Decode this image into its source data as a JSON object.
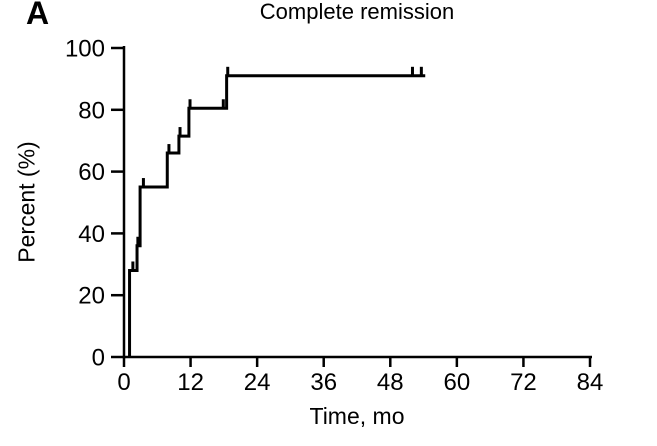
{
  "panel_label": "A",
  "chart_data": {
    "type": "line",
    "subtype": "kaplan-meier-step-curve",
    "title": "Complete remission",
    "xlabel": "Time, mo",
    "ylabel": "Percent (%)",
    "xlim": [
      0,
      84
    ],
    "ylim": [
      0,
      100
    ],
    "xticks": [
      0,
      12,
      24,
      36,
      48,
      60,
      72,
      84
    ],
    "yticks": [
      0,
      20,
      40,
      60,
      80,
      100
    ],
    "grid": false,
    "legend": false,
    "line_color": "#000000",
    "axis_color": "#000000",
    "background_color": "#ffffff",
    "steps": [
      {
        "t": 1.0,
        "pct": 0
      },
      {
        "t": 1.0,
        "pct": 28
      },
      {
        "t": 2.35,
        "pct": 28
      },
      {
        "t": 2.35,
        "pct": 36
      },
      {
        "t": 2.9,
        "pct": 36
      },
      {
        "t": 2.9,
        "pct": 55
      },
      {
        "t": 7.8,
        "pct": 55
      },
      {
        "t": 7.8,
        "pct": 66
      },
      {
        "t": 9.9,
        "pct": 66
      },
      {
        "t": 9.9,
        "pct": 71.5
      },
      {
        "t": 11.7,
        "pct": 71.5
      },
      {
        "t": 11.7,
        "pct": 80.5
      },
      {
        "t": 18.5,
        "pct": 80.5
      },
      {
        "t": 18.5,
        "pct": 91
      },
      {
        "t": 54.3,
        "pct": 91
      }
    ],
    "censor_marks": [
      {
        "t": 1.6,
        "pct": 28
      },
      {
        "t": 2.5,
        "pct": 36
      },
      {
        "t": 3.5,
        "pct": 55
      },
      {
        "t": 8.1,
        "pct": 66
      },
      {
        "t": 10.1,
        "pct": 71.5
      },
      {
        "t": 11.9,
        "pct": 80.5
      },
      {
        "t": 17.9,
        "pct": 80.5
      },
      {
        "t": 18.7,
        "pct": 91
      },
      {
        "t": 52.0,
        "pct": 91
      },
      {
        "t": 53.6,
        "pct": 91
      }
    ]
  }
}
